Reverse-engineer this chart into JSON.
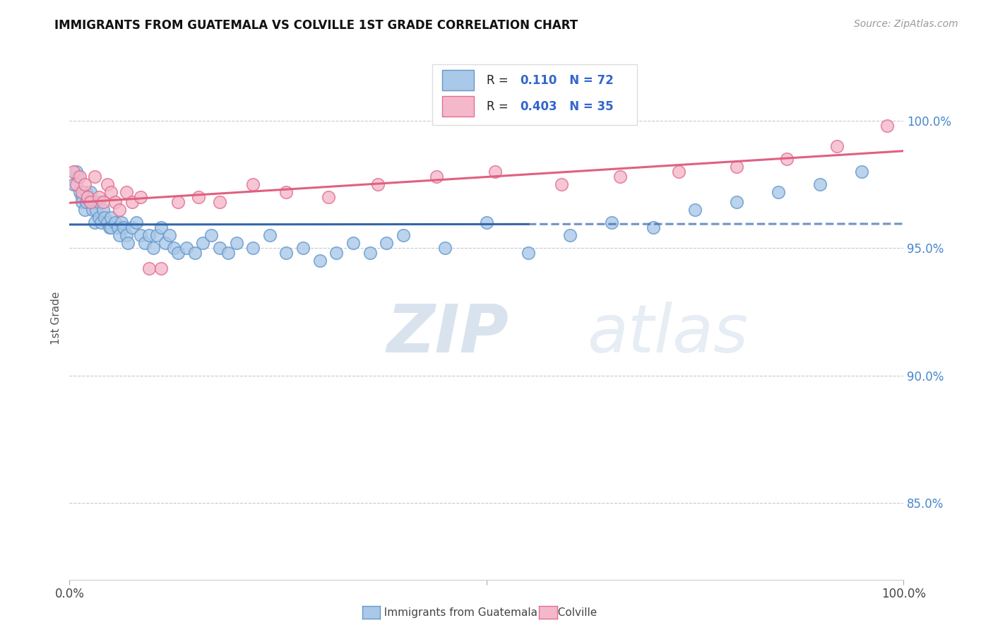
{
  "title": "IMMIGRANTS FROM GUATEMALA VS COLVILLE 1ST GRADE CORRELATION CHART",
  "source_text": "Source: ZipAtlas.com",
  "ylabel": "1st Grade",
  "xlim": [
    0.0,
    1.0
  ],
  "ylim": [
    0.82,
    1.025
  ],
  "legend_R_blue": "0.110",
  "legend_N_blue": "72",
  "legend_R_pink": "0.403",
  "legend_N_pink": "35",
  "blue_color": "#aac8e8",
  "blue_edge": "#6699cc",
  "pink_color": "#f5b8cb",
  "pink_edge": "#e07090",
  "trend_blue_color": "#3366aa",
  "trend_pink_color": "#e06080",
  "hline_color": "#c8c8d8",
  "title_color": "#111111",
  "right_label_color": "#4488cc",
  "legend_text_color": "#222222",
  "legend_val_color": "#3366cc",
  "watermark_color": "#ccd8e8",
  "blue_scatter_x": [
    0.005,
    0.008,
    0.01,
    0.012,
    0.015,
    0.015,
    0.018,
    0.02,
    0.02,
    0.022,
    0.025,
    0.025,
    0.028,
    0.03,
    0.03,
    0.032,
    0.035,
    0.035,
    0.038,
    0.04,
    0.042,
    0.045,
    0.048,
    0.05,
    0.05,
    0.055,
    0.058,
    0.06,
    0.062,
    0.065,
    0.068,
    0.07,
    0.075,
    0.08,
    0.085,
    0.09,
    0.095,
    0.1,
    0.105,
    0.11,
    0.115,
    0.12,
    0.125,
    0.13,
    0.14,
    0.15,
    0.16,
    0.17,
    0.18,
    0.19,
    0.2,
    0.22,
    0.24,
    0.26,
    0.28,
    0.3,
    0.32,
    0.34,
    0.36,
    0.38,
    0.4,
    0.45,
    0.5,
    0.55,
    0.6,
    0.65,
    0.7,
    0.75,
    0.8,
    0.85,
    0.9,
    0.95
  ],
  "blue_scatter_y": [
    0.975,
    0.98,
    0.978,
    0.972,
    0.97,
    0.968,
    0.965,
    0.972,
    0.968,
    0.97,
    0.968,
    0.972,
    0.965,
    0.96,
    0.968,
    0.965,
    0.962,
    0.968,
    0.96,
    0.965,
    0.962,
    0.96,
    0.958,
    0.962,
    0.958,
    0.96,
    0.958,
    0.955,
    0.96,
    0.958,
    0.955,
    0.952,
    0.958,
    0.96,
    0.955,
    0.952,
    0.955,
    0.95,
    0.955,
    0.958,
    0.952,
    0.955,
    0.95,
    0.948,
    0.95,
    0.948,
    0.952,
    0.955,
    0.95,
    0.948,
    0.952,
    0.95,
    0.955,
    0.948,
    0.95,
    0.945,
    0.948,
    0.952,
    0.948,
    0.952,
    0.955,
    0.95,
    0.96,
    0.948,
    0.955,
    0.96,
    0.958,
    0.965,
    0.968,
    0.972,
    0.975,
    0.98
  ],
  "pink_scatter_x": [
    0.005,
    0.008,
    0.012,
    0.015,
    0.018,
    0.022,
    0.025,
    0.03,
    0.035,
    0.04,
    0.045,
    0.05,
    0.055,
    0.06,
    0.068,
    0.075,
    0.085,
    0.095,
    0.11,
    0.13,
    0.155,
    0.18,
    0.22,
    0.26,
    0.31,
    0.37,
    0.44,
    0.51,
    0.59,
    0.66,
    0.73,
    0.8,
    0.86,
    0.92,
    0.98
  ],
  "pink_scatter_y": [
    0.98,
    0.975,
    0.978,
    0.972,
    0.975,
    0.97,
    0.968,
    0.978,
    0.97,
    0.968,
    0.975,
    0.972,
    0.968,
    0.965,
    0.972,
    0.968,
    0.97,
    0.942,
    0.942,
    0.968,
    0.97,
    0.968,
    0.975,
    0.972,
    0.97,
    0.975,
    0.978,
    0.98,
    0.975,
    0.978,
    0.98,
    0.982,
    0.985,
    0.99,
    0.998
  ],
  "xtick_positions": [
    0.0,
    0.5,
    1.0
  ],
  "xtick_labels": [
    "0.0%",
    "",
    "100.0%"
  ],
  "ytick_right_positions": [
    0.85,
    0.9,
    0.95,
    1.0
  ],
  "ytick_right_labels": [
    "85.0%",
    "90.0%",
    "95.0%",
    "100.0%"
  ]
}
